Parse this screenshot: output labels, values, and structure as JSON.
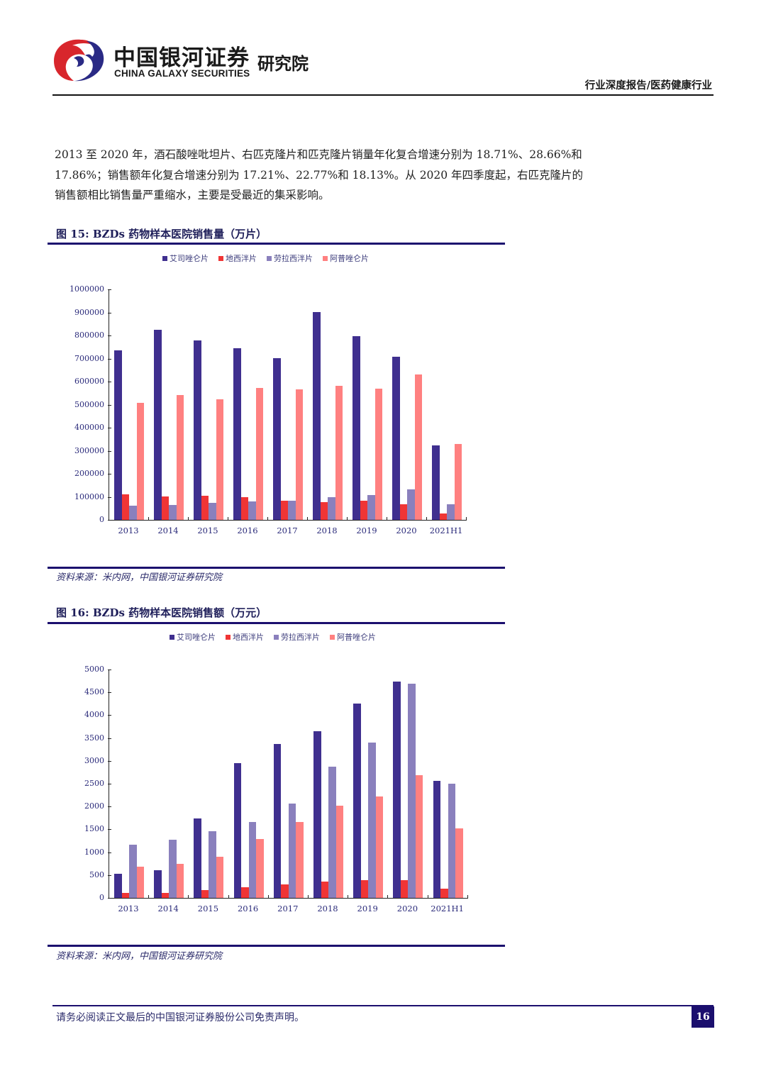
{
  "header": {
    "logo_cn": "中国银河证券",
    "logo_en": "CHINA GALAXY SECURITIES",
    "logo_institute": "研究院",
    "report_type": "行业深度报告/医药健康行业"
  },
  "body": {
    "paragraph": "2013 至 2020 年，酒石酸唑吡坦片、右匹克隆片和匹克隆片销量年化复合增速分别为 18.71%、28.66%和 17.86%；销售额年化复合增速分别为 17.21%、22.77%和 18.13%。从 2020 年四季度起，右匹克隆片的销售额相比销售量严重缩水，主要是受最近的集采影响。"
  },
  "figures": [
    {
      "title": "图 15:  BZDs 药物样本医院销售量（万片）",
      "source": "资料来源：米内网，中国银河证券研究院"
    },
    {
      "title": "图 16:  BZDs 药物样本医院销售额（万元）",
      "source": "资料来源：米内网，中国银河证券研究院"
    }
  ],
  "legend": [
    {
      "label": "艾司唑仑片",
      "color": "#3f2f8f"
    },
    {
      "label": "地西泮片",
      "color": "#f03535"
    },
    {
      "label": "劳拉西泮片",
      "color": "#8a80bd"
    },
    {
      "label": "阿普唑仑片",
      "color": "#ff8080"
    }
  ],
  "chart_data": [
    {
      "type": "bar",
      "title": "图 15: BZDs 药物样本医院销售量（万片）",
      "xlabel": "",
      "ylabel": "万片",
      "ylim": [
        0,
        1000000
      ],
      "yticks": [
        0,
        100000,
        200000,
        300000,
        400000,
        500000,
        600000,
        700000,
        800000,
        900000,
        1000000
      ],
      "grid": false,
      "legend_position": "top",
      "categories": [
        "2013",
        "2014",
        "2015",
        "2016",
        "2017",
        "2018",
        "2019",
        "2020",
        "2021H1"
      ],
      "series": [
        {
          "name": "艾司唑仑片",
          "values": [
            735000,
            825000,
            778000,
            745000,
            701000,
            902000,
            797000,
            708000,
            323000
          ]
        },
        {
          "name": "地西泮片",
          "values": [
            111000,
            102000,
            105000,
            98000,
            83000,
            77000,
            83000,
            68000,
            28000
          ]
        },
        {
          "name": "劳拉西泮片",
          "values": [
            62000,
            65000,
            74000,
            80000,
            83000,
            98000,
            108000,
            132000,
            68000
          ]
        },
        {
          "name": "阿普唑仑片",
          "values": [
            508000,
            541000,
            523000,
            572000,
            566000,
            582000,
            569000,
            631000,
            329000
          ]
        }
      ]
    },
    {
      "type": "bar",
      "title": "图 16: BZDs 药物样本医院销售额（万元）",
      "xlabel": "",
      "ylabel": "万元",
      "ylim": [
        0,
        5000
      ],
      "yticks": [
        0,
        500,
        1000,
        1500,
        2000,
        2500,
        3000,
        3500,
        4000,
        4500,
        5000
      ],
      "grid": false,
      "legend_position": "top",
      "categories": [
        "2013",
        "2014",
        "2015",
        "2016",
        "2017",
        "2018",
        "2019",
        "2020",
        "2021H1"
      ],
      "series": [
        {
          "name": "艾司唑仑片",
          "values": [
            522,
            604,
            1741,
            2955,
            3368,
            3647,
            4261,
            4736,
            2563
          ]
        },
        {
          "name": "地西泮片",
          "values": [
            115,
            115,
            176,
            238,
            295,
            362,
            383,
            393,
            207
          ]
        },
        {
          "name": "劳拉西泮片",
          "values": [
            1157,
            1277,
            1452,
            1664,
            2071,
            2877,
            3394,
            4685,
            2500
          ]
        },
        {
          "name": "阿普唑仑片",
          "values": [
            688,
            750,
            905,
            1292,
            1669,
            2014,
            2216,
            2691,
            1518
          ]
        }
      ]
    }
  ],
  "footer": {
    "disclaimer": "请务必阅读正文最后的中国银河证券股份公司免责声明。",
    "page_number": "16"
  }
}
